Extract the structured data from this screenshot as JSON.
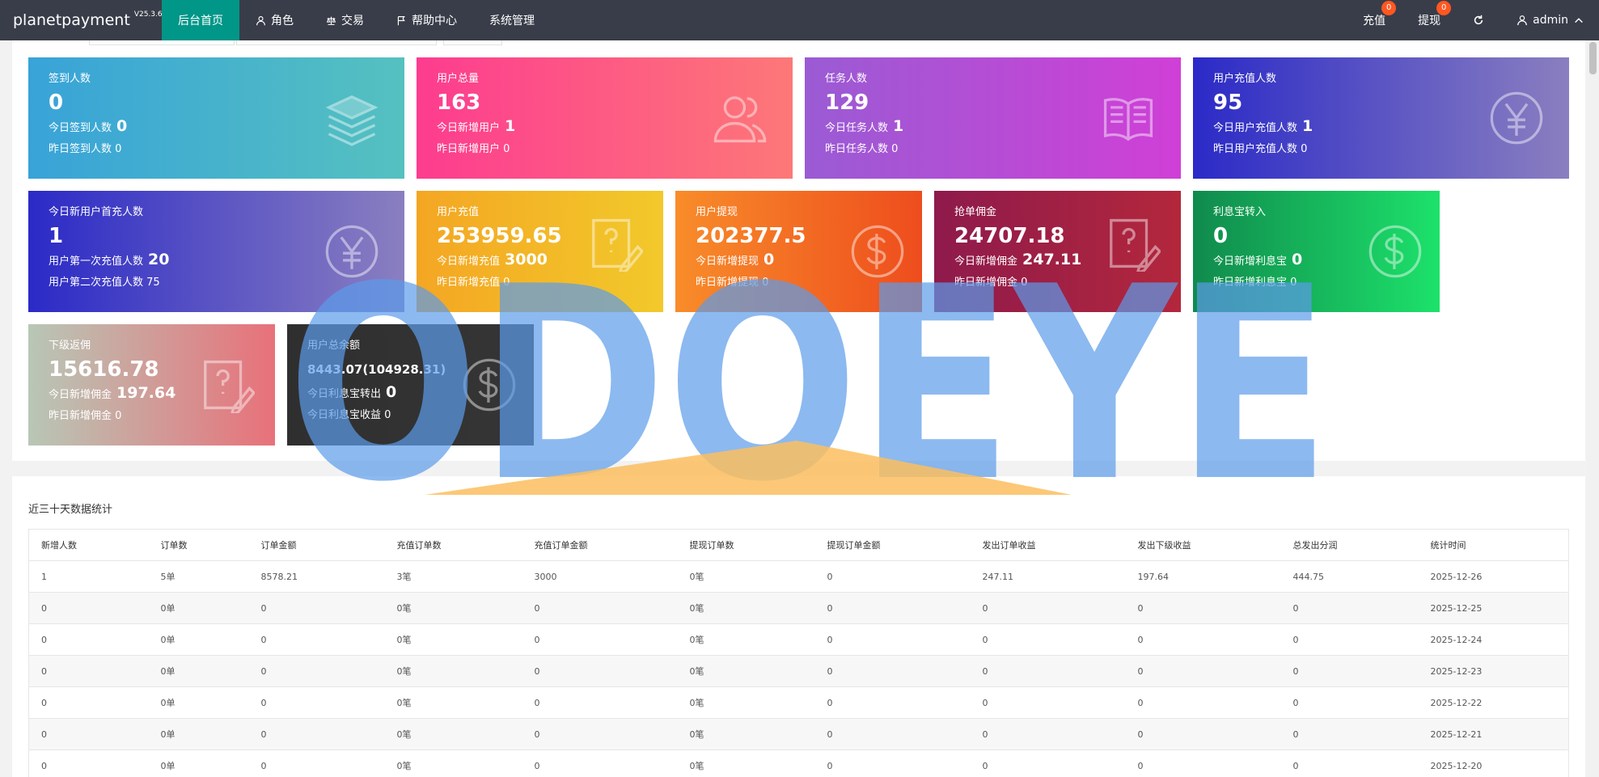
{
  "header": {
    "brand": "planetpayment",
    "version": "V25.3.6",
    "nav": [
      {
        "label": "后台首页",
        "icon": "",
        "active": true
      },
      {
        "label": "角色",
        "icon": "user-icon"
      },
      {
        "label": "交易",
        "icon": "scale-icon"
      },
      {
        "label": "帮助中心",
        "icon": "flag-icon"
      },
      {
        "label": "系统管理",
        "icon": ""
      }
    ],
    "right": {
      "recharge": {
        "label": "充值",
        "badge": "0"
      },
      "withdraw": {
        "label": "提现",
        "badge": "0"
      },
      "refresh_icon": "refresh-icon",
      "user": {
        "label": "admin",
        "icon": "user-icon",
        "caret": "chevron-up-icon"
      }
    }
  },
  "cards": [
    {
      "title": "签到人数",
      "value": "0",
      "row1_label": "今日签到人数",
      "row1_value": "0",
      "row2_label": "昨日签到人数",
      "row2_value": "0",
      "icon": "layers-icon"
    },
    {
      "title": "用户总量",
      "value": "163",
      "row1_label": "今日新增用户",
      "row1_value": "1",
      "row2_label": "昨日新增用户",
      "row2_value": "0",
      "icon": "users-icon"
    },
    {
      "title": "任务人数",
      "value": "129",
      "row1_label": "今日任务人数",
      "row1_value": "1",
      "row2_label": "昨日任务人数",
      "row2_value": "0",
      "icon": "book-icon"
    },
    {
      "title": "用户充值人数",
      "value": "95",
      "row1_label": "今日用户充值人数",
      "row1_value": "1",
      "row2_label": "昨日用户充值人数",
      "row2_value": "0",
      "icon": "yen-icon"
    },
    {
      "title": "今日新用户首充人数",
      "value": "1",
      "row1_label": "用户第一次充值人数",
      "row1_value": "20",
      "row2_label": "用户第二次充值人数",
      "row2_value": "75",
      "icon": "yen-icon"
    },
    {
      "title": "用户充值",
      "value": "253959.65",
      "row1_label": "今日新增充值",
      "row1_value": "3000",
      "row2_label": "昨日新增充值",
      "row2_value": "0",
      "icon": "note-question-icon"
    },
    {
      "title": "用户提现",
      "value": "202377.5",
      "row1_label": "今日新增提现",
      "row1_value": "0",
      "row2_label": "昨日新增提现",
      "row2_value": "0",
      "icon": "dollar-icon"
    },
    {
      "title": "抢单佣金",
      "value": "24707.18",
      "row1_label": "今日新增佣金",
      "row1_value": "247.11",
      "row2_label": "昨日新增佣金",
      "row2_value": "0",
      "icon": "note-question-icon"
    },
    {
      "title": "利息宝转入",
      "value": "0",
      "row1_label": "今日新增利息宝",
      "row1_value": "0",
      "row2_label": "昨日新增利息宝",
      "row2_value": "0",
      "icon": "dollar-icon"
    },
    {
      "title": "下级返佣",
      "value": "15616.78",
      "row1_label": "今日新增佣金",
      "row1_value": "197.64",
      "row2_label": "昨日新增佣金",
      "row2_value": "0",
      "icon": "note-question-icon"
    },
    {
      "title": "用户总余额",
      "value": "8443.07(104928.31)",
      "row1_label": "今日利息宝转出",
      "row1_value": "0",
      "row2_label": "今日利息宝收益",
      "row2_value": "0",
      "icon": "dollar-icon"
    }
  ],
  "stats": {
    "title": "近三十天数据统计",
    "columns": [
      "新增人数",
      "订单数",
      "订单金额",
      "充值订单数",
      "充值订单金额",
      "提现订单数",
      "提现订单金额",
      "发出订单收益",
      "发出下级收益",
      "总发出分润",
      "统计时间"
    ],
    "rows": [
      [
        "1",
        "5单",
        "8578.21",
        "3笔",
        "3000",
        "0笔",
        "0",
        "247.11",
        "197.64",
        "444.75",
        "2025-12-26"
      ],
      [
        "0",
        "0单",
        "0",
        "0笔",
        "0",
        "0笔",
        "0",
        "0",
        "0",
        "0",
        "2025-12-25"
      ],
      [
        "0",
        "0单",
        "0",
        "0笔",
        "0",
        "0笔",
        "0",
        "0",
        "0",
        "0",
        "2025-12-24"
      ],
      [
        "0",
        "0单",
        "0",
        "0笔",
        "0",
        "0笔",
        "0",
        "0",
        "0",
        "0",
        "2025-12-23"
      ],
      [
        "0",
        "0单",
        "0",
        "0笔",
        "0",
        "0笔",
        "0",
        "0",
        "0",
        "0",
        "2025-12-22"
      ],
      [
        "0",
        "0单",
        "0",
        "0笔",
        "0",
        "0笔",
        "0",
        "0",
        "0",
        "0",
        "2025-12-21"
      ],
      [
        "0",
        "0单",
        "0",
        "0笔",
        "0",
        "0笔",
        "0",
        "0",
        "0",
        "0",
        "2025-12-20"
      ]
    ]
  },
  "watermark": {
    "text": "ODOEYE"
  }
}
